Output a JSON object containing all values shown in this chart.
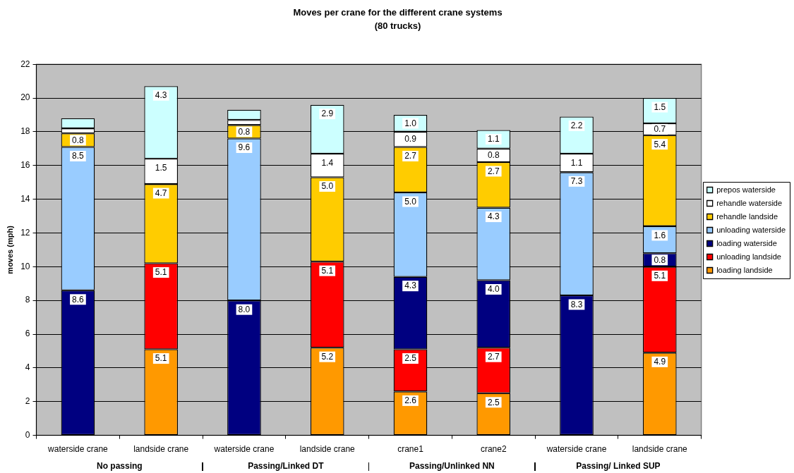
{
  "chart_data": {
    "type": "bar",
    "title": "Moves per crane for the different crane systems",
    "subtitle": "(80 trucks)",
    "ylabel": "moves (mph)",
    "categories": [
      "waterside crane",
      "landside crane",
      "waterside crane",
      "landside crane",
      "crane1",
      "crane2",
      "waterside crane",
      "landside crane"
    ],
    "stacked": true,
    "ylim": [
      0,
      22
    ],
    "yticks": [
      0,
      2,
      4,
      6,
      8,
      10,
      12,
      14,
      16,
      18,
      20,
      22
    ],
    "grid": "y",
    "legend": "right",
    "series": [
      {
        "name": "loading landside",
        "color": "#ff9900",
        "values": [
          null,
          5.1,
          null,
          5.2,
          2.6,
          2.5,
          null,
          4.9
        ],
        "value_labels": [
          null,
          "5.1",
          null,
          "5.2",
          "2.6",
          "2.5",
          null,
          "4.9"
        ]
      },
      {
        "name": "unloading landside",
        "color": "#ff0000",
        "values": [
          null,
          5.1,
          null,
          5.1,
          2.5,
          2.7,
          null,
          5.1
        ],
        "value_labels": [
          null,
          "5.1",
          null,
          "5.1",
          "2.5",
          "2.7",
          null,
          "5.1"
        ]
      },
      {
        "name": "loading waterside",
        "color": "#000080",
        "values": [
          8.6,
          null,
          8.0,
          null,
          4.3,
          4.0,
          8.3,
          0.8
        ],
        "value_labels": [
          "8.6",
          null,
          "8.0",
          null,
          "4.3",
          "4.0",
          "8.3",
          "0.8"
        ]
      },
      {
        "name": "unloading waterside",
        "color": "#99ccff",
        "values": [
          8.5,
          null,
          9.6,
          null,
          5.0,
          4.3,
          7.3,
          1.6
        ],
        "value_labels": [
          "8.5",
          null,
          "9.6",
          null,
          "5.0",
          "4.3",
          "7.3",
          "1.6"
        ]
      },
      {
        "name": "rehandle landside",
        "color": "#ffcc00",
        "values": [
          0.8,
          4.7,
          0.8,
          5.0,
          2.7,
          2.7,
          null,
          5.4
        ],
        "value_labels": [
          "0.8",
          "4.7",
          "0.8",
          "5.0",
          "2.7",
          "2.7",
          null,
          "5.4"
        ]
      },
      {
        "name": "rehandle waterside",
        "color": "#ffffff",
        "values": [
          0.3,
          1.5,
          0.3,
          1.4,
          0.9,
          0.8,
          1.1,
          0.7
        ],
        "value_labels": [
          null,
          "1.5",
          null,
          "1.4",
          "0.9",
          "0.8",
          "1.1",
          "0.7"
        ]
      },
      {
        "name": "prepos waterside",
        "color": "#ccffff",
        "values": [
          0.6,
          4.3,
          0.6,
          2.9,
          1.0,
          1.1,
          2.2,
          1.5
        ],
        "value_labels": [
          null,
          "4.3",
          null,
          "2.9",
          "1.0",
          "1.1",
          "2.2",
          "1.5"
        ]
      }
    ],
    "annotations": [
      "No passing",
      "Passing/Linked DT",
      "Passing/Unlinked NN",
      "Passing/ Linked SUP"
    ]
  }
}
